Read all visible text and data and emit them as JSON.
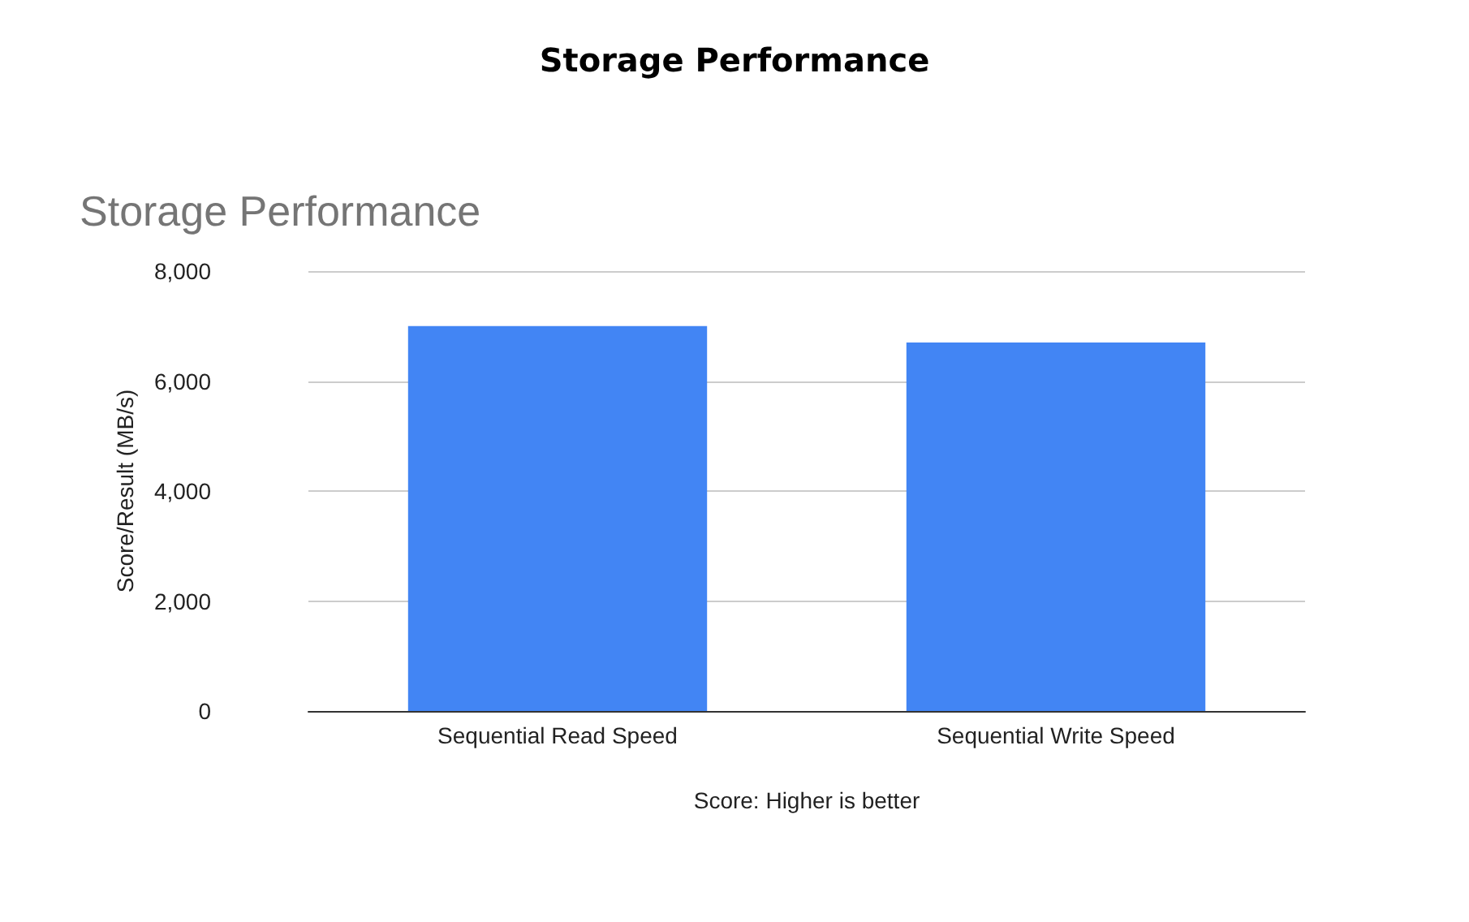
{
  "chart_data": {
    "type": "bar",
    "title": "Storage Performance",
    "subtitle": "Storage Performance",
    "xlabel": "Score: Higher is better",
    "ylabel": "Score/Result (MB/s)",
    "categories": [
      "Sequential Read Speed",
      "Sequential Write Speed"
    ],
    "values": [
      7000,
      6700
    ],
    "color": "#4285f4",
    "ylim": [
      0,
      8000
    ],
    "yticks": [
      0,
      {
        "value": 2000,
        "label": "2,000"
      },
      {
        "value": 4000,
        "label": "4,000"
      },
      {
        "value": 6000,
        "label": "6,000"
      },
      {
        "value": 8000,
        "label": "8,000"
      }
    ],
    "grid": "y"
  }
}
